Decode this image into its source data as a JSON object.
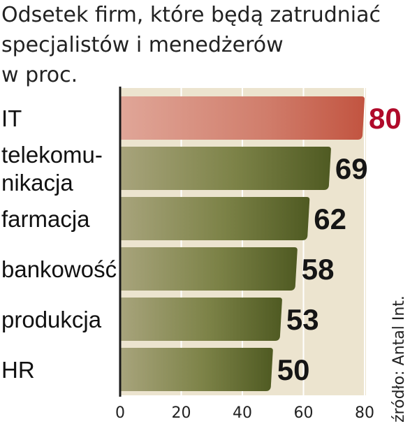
{
  "title_lines": [
    "Odsetek firm, które będą zatrudniać",
    "specjalistów i menedżerów",
    "w proc."
  ],
  "source": "źródło: Antal Int.",
  "colors": {
    "highlight_bar": "#c9614f",
    "highlight_label": "#b00a2a",
    "bar": "#5f6a2e",
    "plot_bg": "#ece4cf",
    "axis": "#1a1a1a",
    "grid": "#ffffff"
  },
  "chart_data": {
    "type": "bar",
    "orientation": "horizontal",
    "categories": [
      [
        "IT"
      ],
      [
        "telekomu-",
        "nikacja"
      ],
      [
        "farmacja"
      ],
      [
        "bankowość"
      ],
      [
        "produkcja"
      ],
      [
        "HR"
      ]
    ],
    "values": [
      80,
      69,
      62,
      58,
      53,
      50
    ],
    "highlight_index": 0,
    "xlim": [
      0,
      80
    ],
    "xticks": [
      0,
      20,
      40,
      60,
      80
    ],
    "grid": true
  }
}
